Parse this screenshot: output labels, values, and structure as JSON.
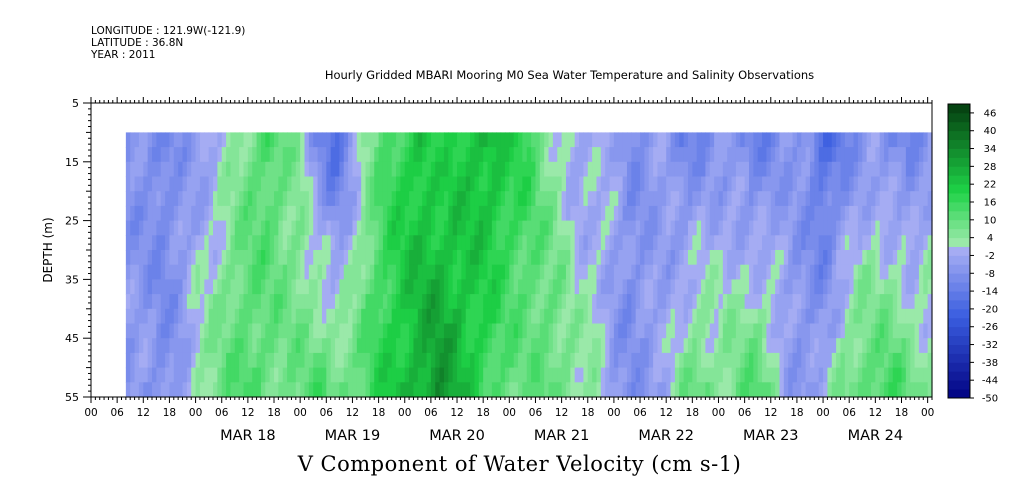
{
  "header": {
    "longitude": "LONGITUDE : 121.9W(-121.9)",
    "latitude": "LATITUDE : 36.8N",
    "year": "YEAR : 2011"
  },
  "chart_data": {
    "type": "heatmap",
    "title": "Hourly Gridded MBARI Mooring M0 Sea Water Temperature and Salinity Observations",
    "caption": "V Component of Water Velocity (cm s-1)",
    "ylabel": "DEPTH (m)",
    "ylim": [
      55,
      5
    ],
    "y_inverted": true,
    "y_ticks": [
      5,
      15,
      25,
      35,
      45,
      55
    ],
    "data_depth_range": [
      10,
      55
    ],
    "x_range_hours": [
      "2011-03-17 00:00",
      "2011-03-25 01:00"
    ],
    "data_start": "2011-03-17 08:00",
    "x_hour_labels": [
      "00",
      "06",
      "12",
      "18",
      "00",
      "06",
      "12",
      "18",
      "00",
      "06",
      "12",
      "18",
      "00",
      "06",
      "12",
      "18",
      "00",
      "06",
      "12",
      "18",
      "00",
      "06",
      "12",
      "18",
      "00",
      "06",
      "12",
      "18",
      "00",
      "06",
      "12",
      "18",
      "00"
    ],
    "x_day_labels": [
      "MAR 18",
      "MAR 19",
      "MAR 20",
      "MAR 21",
      "MAR 22",
      "MAR 23",
      "MAR 24"
    ],
    "colorbar_labels": [
      "46",
      "40",
      "34",
      "28",
      "22",
      "16",
      "10",
      "4",
      "-2",
      "-8",
      "-14",
      "-20",
      "-26",
      "-32",
      "-38",
      "-44",
      "-50"
    ],
    "colorbar_levels": [
      -50,
      -47,
      -44,
      -41,
      -38,
      -35,
      -32,
      -29,
      -26,
      -23,
      -20,
      -17,
      -14,
      -11,
      -8,
      -5,
      -2,
      1,
      4,
      7,
      10,
      13,
      16,
      19,
      22,
      25,
      28,
      31,
      34,
      37,
      40,
      43,
      46,
      49
    ],
    "colors": {
      "negative_strong": "#000080",
      "negative_mid": "#3a5ee0",
      "negative_weak": "#aab0f4",
      "positive_weak": "#a8ecb4",
      "positive_mid": "#1ed247",
      "positive_strong": "#053f10"
    },
    "profile_hours": [
      8,
      12,
      16,
      20,
      24,
      28,
      32,
      36,
      40,
      44,
      48,
      52,
      56,
      60,
      64,
      68,
      72,
      76,
      80,
      84,
      88,
      92,
      96,
      100,
      104,
      108,
      112,
      116,
      120,
      124,
      128,
      132,
      136,
      140,
      144,
      148,
      152,
      156,
      160,
      164,
      168,
      172,
      176,
      180,
      184,
      188,
      192,
      196
    ],
    "surface_v": [
      -6,
      -8,
      -10,
      -7,
      -5,
      -3,
      2,
      8,
      14,
      10,
      4,
      -10,
      -18,
      -6,
      6,
      14,
      18,
      22,
      16,
      20,
      24,
      26,
      20,
      18,
      8,
      2,
      -4,
      -2,
      0,
      -8,
      -6,
      -4,
      -12,
      -10,
      -6,
      -8,
      -14,
      -10,
      -4,
      -8,
      -18,
      -14,
      -8,
      -6,
      -10,
      -12,
      -6,
      4
    ],
    "bottom_v": [
      -6,
      -4,
      -8,
      -6,
      4,
      8,
      12,
      14,
      10,
      8,
      10,
      14,
      12,
      10,
      16,
      20,
      24,
      28,
      34,
      26,
      20,
      14,
      10,
      8,
      12,
      10,
      6,
      4,
      -6,
      -8,
      -4,
      -2,
      8,
      12,
      6,
      10,
      14,
      8,
      -4,
      -6,
      -2,
      8,
      12,
      14,
      16,
      10,
      6,
      4
    ]
  }
}
